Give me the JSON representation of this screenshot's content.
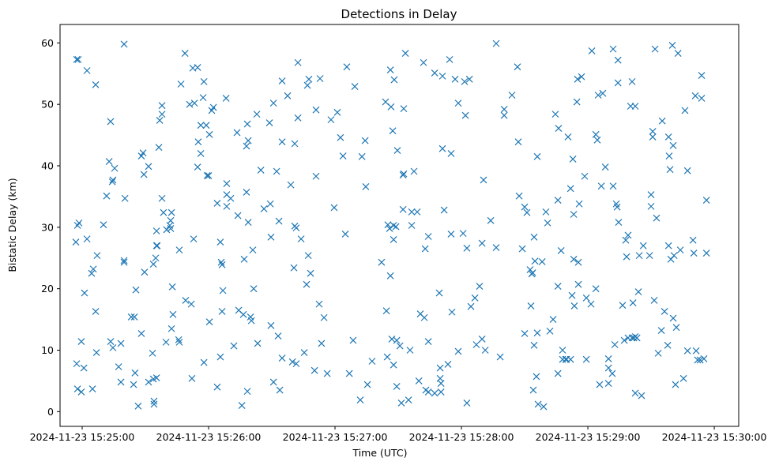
{
  "chart_data": {
    "type": "scatter",
    "title": "Detections in Delay",
    "xlabel": "Time (UTC)",
    "ylabel": "Bistatic Delay (km)",
    "x_units": "seconds after 2024-11-23 15:24:00 UTC",
    "xlim": [
      49.5,
      371.6
    ],
    "ylim": [
      -2.4,
      63.0
    ],
    "grid": false,
    "marker": "x",
    "color": "#1f77b4",
    "x_ticks": [
      {
        "value": 60,
        "label": "2024-11-23 15:25:00"
      },
      {
        "value": 120,
        "label": "2024-11-23 15:26:00"
      },
      {
        "value": 180,
        "label": "2024-11-23 15:27:00"
      },
      {
        "value": 240,
        "label": "2024-11-23 15:28:00"
      },
      {
        "value": 300,
        "label": "2024-11-23 15:29:00"
      },
      {
        "value": 360,
        "label": "2024-11-23 15:30:00"
      }
    ],
    "y_ticks": [
      {
        "value": 0,
        "label": "0"
      },
      {
        "value": 10,
        "label": "10"
      },
      {
        "value": 20,
        "label": "20"
      },
      {
        "value": 30,
        "label": "30"
      },
      {
        "value": 40,
        "label": "40"
      },
      {
        "value": 50,
        "label": "50"
      },
      {
        "value": 60,
        "label": "60"
      }
    ],
    "points": [
      [
        57.4,
        57.3
      ],
      [
        58.1,
        57.3
      ],
      [
        58.5,
        30.7
      ],
      [
        57.8,
        30.3
      ],
      [
        57.0,
        27.6
      ],
      [
        57.4,
        7.8
      ],
      [
        57.8,
        3.7
      ],
      [
        59.6,
        3.2
      ],
      [
        59.6,
        11.4
      ],
      [
        60.8,
        7.1
      ],
      [
        61.1,
        19.3
      ],
      [
        62.3,
        55.5
      ],
      [
        62.3,
        28.1
      ],
      [
        64.5,
        22.5
      ],
      [
        65.3,
        23.2
      ],
      [
        66.4,
        53.2
      ],
      [
        66.4,
        16.3
      ],
      [
        64.9,
        3.7
      ],
      [
        66.8,
        9.6
      ],
      [
        67.1,
        25.4
      ],
      [
        70.1,
        30.4
      ],
      [
        71.6,
        35.1
      ],
      [
        72.8,
        40.7
      ],
      [
        73.5,
        47.2
      ],
      [
        74.3,
        37.4
      ],
      [
        75.4,
        39.6
      ],
      [
        74.6,
        37.7
      ],
      [
        73.5,
        11.4
      ],
      [
        74.6,
        10.4
      ],
      [
        77.3,
        7.3
      ],
      [
        78.4,
        4.8
      ],
      [
        78.4,
        11.1
      ],
      [
        79.9,
        59.8
      ],
      [
        79.9,
        24.6
      ],
      [
        79.9,
        24.3
      ],
      [
        80.3,
        34.7
      ],
      [
        83.3,
        15.4
      ],
      [
        84.8,
        15.4
      ],
      [
        85.5,
        19.8
      ],
      [
        85.1,
        6.3
      ],
      [
        84.4,
        4.4
      ],
      [
        86.6,
        0.9
      ],
      [
        88.1,
        41.6
      ],
      [
        88.9,
        42.1
      ],
      [
        88.1,
        12.7
      ],
      [
        89.3,
        38.6
      ],
      [
        89.6,
        22.7
      ],
      [
        91.5,
        39.9
      ],
      [
        91.5,
        4.8
      ],
      [
        93.4,
        9.5
      ],
      [
        93.8,
        5.3
      ],
      [
        94.1,
        1.2
      ],
      [
        94.1,
        1.7
      ],
      [
        95.3,
        5.5
      ],
      [
        93.8,
        24.0
      ],
      [
        94.9,
        25.0
      ],
      [
        95.3,
        27.0
      ],
      [
        95.3,
        29.4
      ],
      [
        95.6,
        27.0
      ],
      [
        96.8,
        47.4
      ],
      [
        96.4,
        43.0
      ],
      [
        97.9,
        48.4
      ],
      [
        97.9,
        49.8
      ],
      [
        97.9,
        34.7
      ],
      [
        98.6,
        32.4
      ],
      [
        100.1,
        29.6
      ],
      [
        101.6,
        30.3
      ],
      [
        102.0,
        31.1
      ],
      [
        102.4,
        32.4
      ],
      [
        102.0,
        29.8
      ],
      [
        99.8,
        11.3
      ],
      [
        102.4,
        13.5
      ],
      [
        103.1,
        15.8
      ],
      [
        102.8,
        20.3
      ],
      [
        105.8,
        11.7
      ],
      [
        106.1,
        11.3
      ],
      [
        106.1,
        26.3
      ],
      [
        106.9,
        53.3
      ],
      [
        108.8,
        58.3
      ],
      [
        109.1,
        18.1
      ],
      [
        111.0,
        50.0
      ],
      [
        111.8,
        17.5
      ],
      [
        112.1,
        5.4
      ],
      [
        112.5,
        55.9
      ],
      [
        112.9,
        28.1
      ],
      [
        113.3,
        50.2
      ],
      [
        114.8,
        56.0
      ],
      [
        114.8,
        39.8
      ],
      [
        115.1,
        43.9
      ],
      [
        116.3,
        46.6
      ],
      [
        116.3,
        42.0
      ],
      [
        117.4,
        51.1
      ],
      [
        117.8,
        53.7
      ],
      [
        117.8,
        8.0
      ],
      [
        118.9,
        46.6
      ],
      [
        119.3,
        38.4
      ],
      [
        120.0,
        38.4
      ],
      [
        120.4,
        45.1
      ],
      [
        120.4,
        14.6
      ],
      [
        121.5,
        49.0
      ],
      [
        122.3,
        49.5
      ],
      [
        124.1,
        33.9
      ],
      [
        124.1,
        4.0
      ],
      [
        125.6,
        27.6
      ],
      [
        126.0,
        24.3
      ],
      [
        126.4,
        23.9
      ],
      [
        125.6,
        8.9
      ],
      [
        126.4,
        16.3
      ],
      [
        126.8,
        19.7
      ],
      [
        128.3,
        51.0
      ],
      [
        128.6,
        33.4
      ],
      [
        128.6,
        37.1
      ],
      [
        128.6,
        35.3
      ],
      [
        130.5,
        34.7
      ],
      [
        132.0,
        10.7
      ],
      [
        133.5,
        45.4
      ],
      [
        133.9,
        31.9
      ],
      [
        134.3,
        16.5
      ],
      [
        135.8,
        1.0
      ],
      [
        136.5,
        15.8
      ],
      [
        136.9,
        24.8
      ],
      [
        138.0,
        43.2
      ],
      [
        138.0,
        35.7
      ],
      [
        138.4,
        46.8
      ],
      [
        138.4,
        3.3
      ],
      [
        138.8,
        44.1
      ],
      [
        138.8,
        30.8
      ],
      [
        139.9,
        15.4
      ],
      [
        140.3,
        14.8
      ],
      [
        141.0,
        26.3
      ],
      [
        141.4,
        20.0
      ],
      [
        142.9,
        48.4
      ],
      [
        143.3,
        11.1
      ],
      [
        144.8,
        39.3
      ],
      [
        146.3,
        33.0
      ],
      [
        148.9,
        47.0
      ],
      [
        149.3,
        33.8
      ],
      [
        149.6,
        28.4
      ],
      [
        149.6,
        14.0
      ],
      [
        150.8,
        50.2
      ],
      [
        150.8,
        4.8
      ],
      [
        152.3,
        39.1
      ],
      [
        153.4,
        31.0
      ],
      [
        153.0,
        12.3
      ],
      [
        153.8,
        3.5
      ],
      [
        154.9,
        53.8
      ],
      [
        154.9,
        8.7
      ],
      [
        154.9,
        43.9
      ],
      [
        157.5,
        51.4
      ],
      [
        159.0,
        36.9
      ],
      [
        159.8,
        8.1
      ],
      [
        160.5,
        23.4
      ],
      [
        160.9,
        30.2
      ],
      [
        160.9,
        43.6
      ],
      [
        161.6,
        29.9
      ],
      [
        161.6,
        7.8
      ],
      [
        162.4,
        56.8
      ],
      [
        162.4,
        47.8
      ],
      [
        163.9,
        28.1
      ],
      [
        165.4,
        9.6
      ],
      [
        166.5,
        20.7
      ],
      [
        166.9,
        53.1
      ],
      [
        167.6,
        54.1
      ],
      [
        167.3,
        25.4
      ],
      [
        168.4,
        22.5
      ],
      [
        170.3,
        6.7
      ],
      [
        171.0,
        38.3
      ],
      [
        171.0,
        49.1
      ],
      [
        172.9,
        54.2
      ],
      [
        172.5,
        17.5
      ],
      [
        173.6,
        11.1
      ],
      [
        174.8,
        15.3
      ],
      [
        176.3,
        6.2
      ],
      [
        178.1,
        47.5
      ],
      [
        179.6,
        33.2
      ],
      [
        181.1,
        48.7
      ],
      [
        182.6,
        44.6
      ],
      [
        183.8,
        41.6
      ],
      [
        184.9,
        28.9
      ],
      [
        185.6,
        56.1
      ],
      [
        186.8,
        6.2
      ],
      [
        188.6,
        11.6
      ],
      [
        189.4,
        52.9
      ],
      [
        192.0,
        1.9
      ],
      [
        192.8,
        41.5
      ],
      [
        194.3,
        44.1
      ],
      [
        194.6,
        36.6
      ],
      [
        195.4,
        4.4
      ],
      [
        197.6,
        8.2
      ],
      [
        202.1,
        24.3
      ],
      [
        204.0,
        50.4
      ],
      [
        204.4,
        16.4
      ],
      [
        204.8,
        8.9
      ],
      [
        205.1,
        30.4
      ],
      [
        205.9,
        29.8
      ],
      [
        206.3,
        55.6
      ],
      [
        206.3,
        22.1
      ],
      [
        206.6,
        49.6
      ],
      [
        207.0,
        11.8
      ],
      [
        207.4,
        45.7
      ],
      [
        207.8,
        30.3
      ],
      [
        207.8,
        7.6
      ],
      [
        207.8,
        28.0
      ],
      [
        208.1,
        54.0
      ],
      [
        208.9,
        30.1
      ],
      [
        209.3,
        11.6
      ],
      [
        209.3,
        4.1
      ],
      [
        209.6,
        42.5
      ],
      [
        210.8,
        10.7
      ],
      [
        211.5,
        1.4
      ],
      [
        212.3,
        32.9
      ],
      [
        212.3,
        38.5
      ],
      [
        212.6,
        38.7
      ],
      [
        212.6,
        49.3
      ],
      [
        213.4,
        58.3
      ],
      [
        214.9,
        1.9
      ],
      [
        215.6,
        10.0
      ],
      [
        216.4,
        30.3
      ],
      [
        216.4,
        32.5
      ],
      [
        217.5,
        39.1
      ],
      [
        219.0,
        32.5
      ],
      [
        219.8,
        5.0
      ],
      [
        220.5,
        15.9
      ],
      [
        222.0,
        56.8
      ],
      [
        222.8,
        26.5
      ],
      [
        222.4,
        15.3
      ],
      [
        223.1,
        3.5
      ],
      [
        224.3,
        28.5
      ],
      [
        224.3,
        11.4
      ],
      [
        224.3,
        3.2
      ],
      [
        227.3,
        55.1
      ],
      [
        227.3,
        3.0
      ],
      [
        229.5,
        19.3
      ],
      [
        229.9,
        7.1
      ],
      [
        229.9,
        5.4
      ],
      [
        230.3,
        4.6
      ],
      [
        230.3,
        3.2
      ],
      [
        231.0,
        54.6
      ],
      [
        231.0,
        42.8
      ],
      [
        231.8,
        32.8
      ],
      [
        233.6,
        7.7
      ],
      [
        234.4,
        57.3
      ],
      [
        235.5,
        16.2
      ],
      [
        235.1,
        28.9
      ],
      [
        235.1,
        42.0
      ],
      [
        237.0,
        54.1
      ],
      [
        238.5,
        50.2
      ],
      [
        238.5,
        9.8
      ],
      [
        240.8,
        29.0
      ],
      [
        241.5,
        53.7
      ],
      [
        241.9,
        48.2
      ],
      [
        242.6,
        26.6
      ],
      [
        243.8,
        54.1
      ],
      [
        244.5,
        17.1
      ],
      [
        242.6,
        1.4
      ],
      [
        246.4,
        18.5
      ],
      [
        247.1,
        10.9
      ],
      [
        248.6,
        20.4
      ],
      [
        249.8,
        27.4
      ],
      [
        249.8,
        11.8
      ],
      [
        250.5,
        37.7
      ],
      [
        251.3,
        10.0
      ],
      [
        253.9,
        31.1
      ],
      [
        256.5,
        59.9
      ],
      [
        256.5,
        26.7
      ],
      [
        258.4,
        8.9
      ],
      [
        260.3,
        49.2
      ],
      [
        260.3,
        48.2
      ],
      [
        264.0,
        51.5
      ],
      [
        266.6,
        56.1
      ],
      [
        267.0,
        43.9
      ],
      [
        267.4,
        35.1
      ],
      [
        268.9,
        26.5
      ],
      [
        270.0,
        33.3
      ],
      [
        270.0,
        12.7
      ],
      [
        271.1,
        32.4
      ],
      [
        272.6,
        23.1
      ],
      [
        273.0,
        17.2
      ],
      [
        273.4,
        22.4
      ],
      [
        273.8,
        22.6
      ],
      [
        274.1,
        3.5
      ],
      [
        274.5,
        28.4
      ],
      [
        274.5,
        10.8
      ],
      [
        274.9,
        24.5
      ],
      [
        276.0,
        41.5
      ],
      [
        276.0,
        12.8
      ],
      [
        276.4,
        1.2
      ],
      [
        275.6,
        5.7
      ],
      [
        278.3,
        24.4
      ],
      [
        279.0,
        0.8
      ],
      [
        280.1,
        32.5
      ],
      [
        280.9,
        30.7
      ],
      [
        282.0,
        13.1
      ],
      [
        283.5,
        15.0
      ],
      [
        284.6,
        48.4
      ],
      [
        286.1,
        46.1
      ],
      [
        285.8,
        6.2
      ],
      [
        285.8,
        34.4
      ],
      [
        285.8,
        20.4
      ],
      [
        287.3,
        26.2
      ],
      [
        288.0,
        10.0
      ],
      [
        288.0,
        8.5
      ],
      [
        289.5,
        8.5
      ],
      [
        289.9,
        8.5
      ],
      [
        290.6,
        44.7
      ],
      [
        291.8,
        8.5
      ],
      [
        291.8,
        36.3
      ],
      [
        292.5,
        18.9
      ],
      [
        292.9,
        41.1
      ],
      [
        293.3,
        24.8
      ],
      [
        293.3,
        32.1
      ],
      [
        293.6,
        17.2
      ],
      [
        294.8,
        50.4
      ],
      [
        295.1,
        54.1
      ],
      [
        295.5,
        20.7
      ],
      [
        295.5,
        24.3
      ],
      [
        295.9,
        33.8
      ],
      [
        297.0,
        54.5
      ],
      [
        298.5,
        38.3
      ],
      [
        299.3,
        18.5
      ],
      [
        301.5,
        17.5
      ],
      [
        299.3,
        8.5
      ],
      [
        301.9,
        58.7
      ],
      [
        303.8,
        20.0
      ],
      [
        303.8,
        45.1
      ],
      [
        304.5,
        44.2
      ],
      [
        305.6,
        4.4
      ],
      [
        304.9,
        51.5
      ],
      [
        307.1,
        51.8
      ],
      [
        306.4,
        36.7
      ],
      [
        308.3,
        39.8
      ],
      [
        309.8,
        4.6
      ],
      [
        309.8,
        7.1
      ],
      [
        309.8,
        8.6
      ],
      [
        311.6,
        6.2
      ],
      [
        312.0,
        59.0
      ],
      [
        312.0,
        36.7
      ],
      [
        312.8,
        10.9
      ],
      [
        313.5,
        33.8
      ],
      [
        313.9,
        33.3
      ],
      [
        314.3,
        57.2
      ],
      [
        314.3,
        53.5
      ],
      [
        314.6,
        30.8
      ],
      [
        316.5,
        17.3
      ],
      [
        317.3,
        11.6
      ],
      [
        318.0,
        27.9
      ],
      [
        318.4,
        25.2
      ],
      [
        319.1,
        28.7
      ],
      [
        319.1,
        12.0
      ],
      [
        320.3,
        49.7
      ],
      [
        321.0,
        12.0
      ],
      [
        321.0,
        53.7
      ],
      [
        321.4,
        17.7
      ],
      [
        321.8,
        12.0
      ],
      [
        322.5,
        49.7
      ],
      [
        322.5,
        12.2
      ],
      [
        323.3,
        12.0
      ],
      [
        322.5,
        3.0
      ],
      [
        324.0,
        19.5
      ],
      [
        324.4,
        25.4
      ],
      [
        326.3,
        27.0
      ],
      [
        325.5,
        2.6
      ],
      [
        329.3,
        25.4
      ],
      [
        330.0,
        35.3
      ],
      [
        330.0,
        33.4
      ],
      [
        330.8,
        45.6
      ],
      [
        330.8,
        44.7
      ],
      [
        331.5,
        18.1
      ],
      [
        331.9,
        59.0
      ],
      [
        332.6,
        31.5
      ],
      [
        333.4,
        9.5
      ],
      [
        335.3,
        47.3
      ],
      [
        334.9,
        13.2
      ],
      [
        336.4,
        16.3
      ],
      [
        337.9,
        10.8
      ],
      [
        338.3,
        44.7
      ],
      [
        338.3,
        27.0
      ],
      [
        338.6,
        41.6
      ],
      [
        339.0,
        39.4
      ],
      [
        339.4,
        24.8
      ],
      [
        340.5,
        43.3
      ],
      [
        340.1,
        59.6
      ],
      [
        340.5,
        15.2
      ],
      [
        340.9,
        25.4
      ],
      [
        341.6,
        4.4
      ],
      [
        342.0,
        13.7
      ],
      [
        342.8,
        58.3
      ],
      [
        343.9,
        26.3
      ],
      [
        345.4,
        5.4
      ],
      [
        346.1,
        49.0
      ],
      [
        347.3,
        39.2
      ],
      [
        347.3,
        9.9
      ],
      [
        349.9,
        27.9
      ],
      [
        350.3,
        25.8
      ],
      [
        351.0,
        51.4
      ],
      [
        351.4,
        9.9
      ],
      [
        352.1,
        8.4
      ],
      [
        353.3,
        8.4
      ],
      [
        354.0,
        54.7
      ],
      [
        354.0,
        51.0
      ],
      [
        355.1,
        8.6
      ],
      [
        356.3,
        34.4
      ],
      [
        356.3,
        25.8
      ]
    ]
  }
}
